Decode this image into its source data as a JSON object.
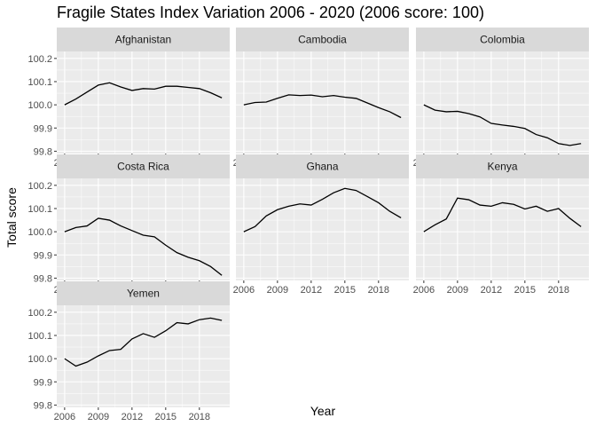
{
  "chart_data": {
    "type": "line",
    "title": "Fragile States Index Variation 2006 - 2020 (2006 score: 100)",
    "xlabel": "Year",
    "ylabel": "Total score",
    "x": [
      2006,
      2007,
      2008,
      2009,
      2010,
      2011,
      2012,
      2013,
      2014,
      2015,
      2016,
      2017,
      2018,
      2019,
      2020
    ],
    "xlim": [
      2005.3,
      2020.7
    ],
    "ylim": [
      99.79,
      100.23
    ],
    "x_ticks": [
      2006,
      2009,
      2012,
      2015,
      2018
    ],
    "y_ticks": [
      99.8,
      99.9,
      100.0,
      100.1,
      100.2
    ],
    "y_tick_labels": [
      "99.8",
      "99.9",
      "100.0",
      "100.1",
      "100.2"
    ],
    "facet_columns": 3,
    "grid": true,
    "legend": "none",
    "colors": {
      "panel": "#ebebeb",
      "strip": "#d9d9d9",
      "grid_major": "#ffffff",
      "line": "#000000",
      "tick": "#333333"
    },
    "series": [
      {
        "name": "Afghanistan",
        "values": [
          100.0,
          100.025,
          100.055,
          100.085,
          100.095,
          100.077,
          100.062,
          100.07,
          100.068,
          100.08,
          100.08,
          100.075,
          100.07,
          100.052,
          100.03
        ]
      },
      {
        "name": "Cambodia",
        "values": [
          100.0,
          100.01,
          100.012,
          100.028,
          100.043,
          100.04,
          100.042,
          100.035,
          100.04,
          100.033,
          100.028,
          100.008,
          99.988,
          99.97,
          99.945
        ]
      },
      {
        "name": "Colombia",
        "values": [
          100.0,
          99.977,
          99.97,
          99.972,
          99.962,
          99.948,
          99.92,
          99.913,
          99.907,
          99.898,
          99.872,
          99.858,
          99.833,
          99.825,
          99.833
        ]
      },
      {
        "name": "Costa Rica",
        "values": [
          100.0,
          100.018,
          100.025,
          100.058,
          100.05,
          100.025,
          100.005,
          99.985,
          99.978,
          99.942,
          99.91,
          99.89,
          99.875,
          99.85,
          99.812
        ]
      },
      {
        "name": "Ghana",
        "values": [
          100.0,
          100.022,
          100.068,
          100.095,
          100.11,
          100.12,
          100.115,
          100.14,
          100.168,
          100.187,
          100.178,
          100.152,
          100.125,
          100.088,
          100.06
        ]
      },
      {
        "name": "Kenya",
        "values": [
          100.0,
          100.03,
          100.055,
          100.145,
          100.138,
          100.115,
          100.11,
          100.125,
          100.118,
          100.098,
          100.11,
          100.088,
          100.1,
          100.058,
          100.022
        ]
      },
      {
        "name": "Yemen",
        "values": [
          100.0,
          99.968,
          99.985,
          100.012,
          100.035,
          100.04,
          100.085,
          100.108,
          100.092,
          100.12,
          100.155,
          100.15,
          100.168,
          100.175,
          100.165
        ]
      }
    ]
  }
}
